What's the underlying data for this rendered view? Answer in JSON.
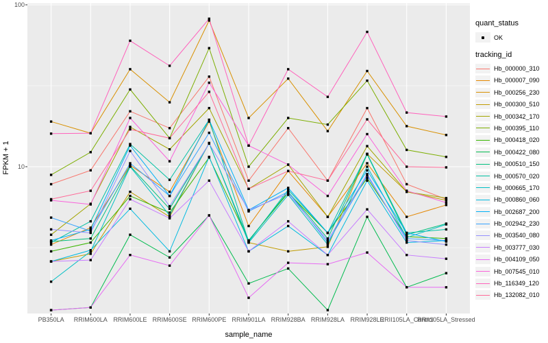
{
  "figure": {
    "background": "#FFFFFF",
    "panel_background": "#EBEBEB",
    "gridline_color": "#FFFFFF",
    "axis_text_color": "#4D4D4D",
    "point_color": "#000000"
  },
  "axes": {
    "x_title": "sample_name",
    "y_title": "FPKM + 1"
  },
  "legend": {
    "quant_title": "quant_status",
    "quant_items": [
      {
        "label": "OK",
        "marker": "black-point"
      }
    ],
    "tracking_title": "tracking_id"
  },
  "chart_data": {
    "type": "line",
    "title": "",
    "xlabel": "sample_name",
    "ylabel": "FPKM + 1",
    "y_scale": "log10",
    "ylim": [
      1.24,
      105
    ],
    "y_major_ticks": [
      100,
      10
    ],
    "y_minor_gridlines": [
      31.62,
      3.162
    ],
    "grid": true,
    "legend_position": "right",
    "marker": "small black square (quant_status = OK)",
    "categories": [
      "PB350LA",
      "RRIM600LA",
      "RRIM600LE",
      "RRIM600SE",
      "RRIM600PE",
      "RRIM901LA",
      "RRIM928BA",
      "RRIM928LA",
      "RRIM928LE",
      "RRII105LA_Control",
      "RRII105LA_Stressed"
    ],
    "series": [
      {
        "name": "Hb_000000_310",
        "color": "#F8766D",
        "values": [
          7.8,
          9.5,
          22,
          17.3,
          36,
          8.2,
          17.3,
          8.2,
          23,
          7.8,
          6.3
        ]
      },
      {
        "name": "Hb_000007_090",
        "color": "#E58700",
        "values": [
          3.3,
          4.2,
          10.2,
          7.0,
          19,
          4.3,
          9.4,
          4.9,
          10.5,
          4.9,
          5.8
        ]
      },
      {
        "name": "Hb_000256_230",
        "color": "#D89000",
        "values": [
          19,
          16.1,
          40,
          25,
          80,
          20,
          35,
          16.6,
          39,
          17.8,
          15.7
        ]
      },
      {
        "name": "Hb_000300_510",
        "color": "#C09B00",
        "values": [
          2.6,
          2.9,
          7.0,
          4.9,
          14,
          3.4,
          3.0,
          3.2,
          12,
          7.0,
          6.2
        ]
      },
      {
        "name": "Hb_000342_170",
        "color": "#A3A500",
        "values": [
          3.8,
          5.9,
          17.6,
          12.8,
          23,
          7.3,
          10.3,
          4.9,
          13.4,
          7.0,
          6.4
        ]
      },
      {
        "name": "Hb_000395_110",
        "color": "#7CAE00",
        "values": [
          8.9,
          12.3,
          30,
          15,
          54,
          10,
          20,
          18.2,
          34,
          12.7,
          11.5
        ]
      },
      {
        "name": "Hb_000418_020",
        "color": "#39B600",
        "values": [
          3.0,
          3.4,
          6.6,
          5.2,
          11.4,
          3.5,
          6.9,
          3.9,
          8.5,
          3.7,
          3.6
        ]
      },
      {
        "name": "Hb_000422_080",
        "color": "#00BB4E",
        "values": [
          1.3,
          1.35,
          3.8,
          2.75,
          5.0,
          1.9,
          2.35,
          1.3,
          4.9,
          1.8,
          2.2
        ]
      },
      {
        "name": "Hb_000510_150",
        "color": "#00BF7D",
        "values": [
          3.45,
          3.6,
          10.1,
          5.5,
          13.9,
          3.5,
          7.0,
          3.6,
          11.9,
          3.8,
          4.45
        ]
      },
      {
        "name": "Hb_000570_020",
        "color": "#00C1A3",
        "values": [
          3.4,
          4.6,
          13.8,
          8.3,
          19.5,
          3.45,
          7.2,
          3.9,
          12,
          3.9,
          4.1
        ]
      },
      {
        "name": "Hb_000665_170",
        "color": "#00BFC4",
        "values": [
          1.95,
          3.0,
          10,
          5.0,
          14,
          3.4,
          6.7,
          3.3,
          10,
          3.65,
          4.4
        ]
      },
      {
        "name": "Hb_000860_060",
        "color": "#00BAE0",
        "values": [
          2.6,
          3.05,
          5.5,
          3.0,
          11.5,
          3.0,
          4.3,
          2.85,
          8.2,
          3.4,
          3.5
        ]
      },
      {
        "name": "Hb_002687_200",
        "color": "#00B0F6",
        "values": [
          3.5,
          4.1,
          13.5,
          6.6,
          19.5,
          5.4,
          7.4,
          3.9,
          9.5,
          3.9,
          3.45
        ]
      },
      {
        "name": "Hb_002942_230",
        "color": "#35A2FF",
        "values": [
          4.85,
          4.0,
          10.5,
          6.6,
          16.2,
          5.3,
          7.0,
          3.4,
          8.8,
          3.6,
          3.5
        ]
      },
      {
        "name": "Hb_003540_080",
        "color": "#9590FF",
        "values": [
          4.1,
          3.9,
          12.5,
          5.7,
          13.9,
          5.4,
          6.8,
          3.5,
          9.0,
          3.5,
          3.3
        ]
      },
      {
        "name": "Hb_003777_030",
        "color": "#C77CFF",
        "values": [
          2.6,
          2.65,
          6.3,
          4.8,
          8.2,
          3.0,
          4.6,
          2.85,
          5.45,
          2.85,
          2.7
        ]
      },
      {
        "name": "Hb_004109_050",
        "color": "#E76BF3",
        "values": [
          1.3,
          1.35,
          2.85,
          2.45,
          5.0,
          1.55,
          2.55,
          2.5,
          2.95,
          1.8,
          1.8
        ]
      },
      {
        "name": "Hb_007545_010",
        "color": "#FA62DB",
        "values": [
          6.2,
          5.85,
          20,
          10.8,
          33,
          13.5,
          10.3,
          6.6,
          15.9,
          7.1,
          6.0
        ]
      },
      {
        "name": "Hb_116349_120",
        "color": "#FF62BC",
        "values": [
          16,
          16.1,
          60,
          42,
          82,
          13.5,
          40,
          27,
          68,
          21.6,
          20.4
        ]
      },
      {
        "name": "Hb_132082_010",
        "color": "#FF6A98",
        "values": [
          6.3,
          7.1,
          17,
          15,
          29,
          7.3,
          9.4,
          8.2,
          19.6,
          10.0,
          9.9
        ]
      }
    ]
  }
}
